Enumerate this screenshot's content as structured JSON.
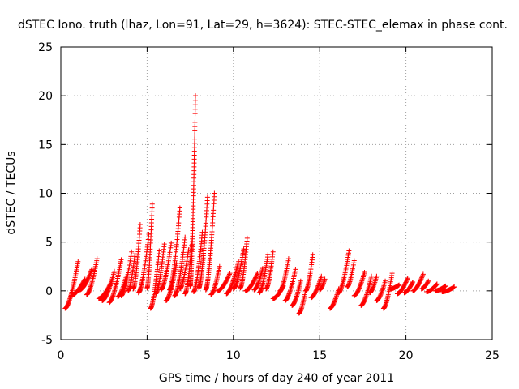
{
  "chart_data": {
    "type": "scatter",
    "title": "dSTEC Iono. truth (lhaz, Lon=91, Lat=29, h=3624): STEC-STEC_elemax in phase cont.",
    "xlabel": "GPS time / hours of day 240 of year 2011",
    "ylabel": "dSTEC  / TECUs",
    "xlim": [
      0,
      25
    ],
    "ylim": [
      -5,
      25
    ],
    "x_ticks": [
      0,
      5,
      10,
      15,
      20,
      25
    ],
    "y_ticks": [
      -5,
      0,
      5,
      10,
      15,
      20,
      25
    ],
    "grid": true,
    "marker": "+",
    "marker_color": "#ff0000",
    "series": [
      {
        "name": "dSTEC",
        "arcs": [
          [
            0.25,
            1.0,
            -1.8,
            3.0
          ],
          [
            0.6,
            1.4,
            -0.5,
            1.2
          ],
          [
            1.1,
            1.8,
            0.1,
            2.2
          ],
          [
            1.5,
            2.1,
            -0.4,
            3.3
          ],
          [
            2.2,
            2.9,
            -0.8,
            0.8
          ],
          [
            2.4,
            3.1,
            -1.0,
            2.0
          ],
          [
            2.8,
            3.5,
            -1.2,
            3.2
          ],
          [
            3.3,
            3.8,
            -0.6,
            1.5
          ],
          [
            3.5,
            4.1,
            -0.5,
            4.0
          ],
          [
            3.9,
            4.3,
            0.0,
            3.8
          ],
          [
            4.2,
            4.6,
            0.2,
            6.8
          ],
          [
            4.5,
            5.1,
            -0.2,
            5.8
          ],
          [
            5.0,
            5.3,
            0.3,
            8.9
          ],
          [
            5.2,
            5.7,
            -1.8,
            4.1
          ],
          [
            5.5,
            6.0,
            -0.3,
            4.8
          ],
          [
            5.8,
            6.4,
            0.1,
            4.9
          ],
          [
            6.1,
            6.7,
            -1.0,
            2.8
          ],
          [
            6.3,
            6.9,
            0.1,
            8.5
          ],
          [
            6.6,
            7.2,
            -0.5,
            5.5
          ],
          [
            6.9,
            7.4,
            0.2,
            4.2
          ],
          [
            7.2,
            7.6,
            -0.3,
            5.0
          ],
          [
            7.5,
            7.8,
            0.5,
            20.0
          ],
          [
            7.7,
            8.2,
            -0.1,
            6.0
          ],
          [
            8.0,
            8.5,
            0.3,
            9.6
          ],
          [
            8.4,
            8.9,
            0.1,
            10.0
          ],
          [
            8.7,
            9.2,
            -0.4,
            2.5
          ],
          [
            9.1,
            9.8,
            0.0,
            1.8
          ],
          [
            9.6,
            10.3,
            -0.3,
            3.0
          ],
          [
            10.0,
            10.6,
            0.2,
            4.3
          ],
          [
            10.4,
            10.8,
            0.3,
            5.4
          ],
          [
            10.7,
            11.4,
            0.0,
            1.8
          ],
          [
            11.2,
            11.7,
            0.1,
            2.3
          ],
          [
            11.5,
            12.0,
            -0.2,
            3.7
          ],
          [
            11.9,
            12.3,
            0.2,
            4.0
          ],
          [
            12.3,
            12.9,
            -0.8,
            0.5
          ],
          [
            12.7,
            13.2,
            0.0,
            3.3
          ],
          [
            13.0,
            13.6,
            -1.0,
            2.2
          ],
          [
            13.4,
            13.9,
            -1.5,
            1.0
          ],
          [
            13.8,
            14.2,
            -2.3,
            0.2
          ],
          [
            14.2,
            14.6,
            0.0,
            3.7
          ],
          [
            14.5,
            15.1,
            -0.7,
            1.5
          ],
          [
            15.0,
            15.3,
            0.1,
            1.2
          ],
          [
            15.6,
            16.1,
            -1.8,
            0.2
          ],
          [
            16.1,
            16.7,
            -0.2,
            4.1
          ],
          [
            16.6,
            17.0,
            0.4,
            3.1
          ],
          [
            17.0,
            17.6,
            -0.5,
            1.9
          ],
          [
            17.4,
            18.0,
            -1.5,
            1.5
          ],
          [
            17.9,
            18.3,
            -0.2,
            1.5
          ],
          [
            18.3,
            18.8,
            -1.0,
            1.0
          ],
          [
            18.7,
            19.2,
            -1.8,
            1.8
          ],
          [
            19.1,
            19.6,
            0.2,
            0.6
          ],
          [
            19.5,
            20.1,
            -0.3,
            1.3
          ],
          [
            19.9,
            20.4,
            -0.2,
            0.9
          ],
          [
            20.4,
            21.0,
            0.0,
            1.7
          ],
          [
            20.9,
            21.3,
            0.2,
            1.0
          ],
          [
            21.2,
            21.8,
            -0.1,
            0.7
          ],
          [
            21.7,
            22.3,
            0.0,
            0.5
          ],
          [
            22.1,
            22.8,
            -0.1,
            0.4
          ]
        ]
      }
    ]
  }
}
